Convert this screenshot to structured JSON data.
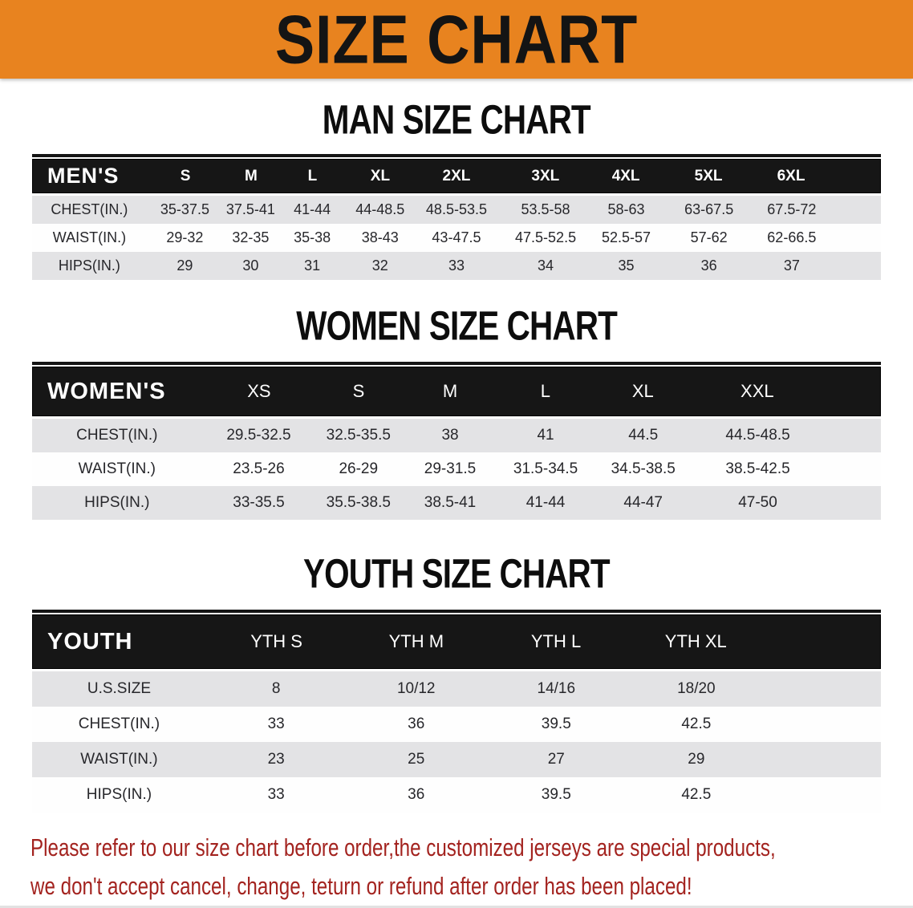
{
  "banner": {
    "title": "SIZE CHART"
  },
  "sections": [
    {
      "heading": "MAN SIZE CHART",
      "table": {
        "label": "MEN'S",
        "columns": [
          "S",
          "M",
          "L",
          "XL",
          "2XL",
          "3XL",
          "4XL",
          "5XL",
          "6XL"
        ],
        "rows": [
          {
            "label": "CHEST(IN.)",
            "values": [
              "35-37.5",
              "37.5-41",
              "41-44",
              "44-48.5",
              "48.5-53.5",
              "53.5-58",
              "58-63",
              "63-67.5",
              "67.5-72"
            ]
          },
          {
            "label": "WAIST(IN.)",
            "values": [
              "29-32",
              "32-35",
              "35-38",
              "38-43",
              "43-47.5",
              "47.5-52.5",
              "52.5-57",
              "57-62",
              "62-66.5"
            ]
          },
          {
            "label": "HIPS(IN.)",
            "values": [
              "29",
              "30",
              "31",
              "32",
              "33",
              "34",
              "35",
              "36",
              "37"
            ]
          }
        ]
      }
    },
    {
      "heading": "WOMEN SIZE CHART",
      "table": {
        "label": "WOMEN'S",
        "columns": [
          "XS",
          "S",
          "M",
          "L",
          "XL",
          "XXL"
        ],
        "rows": [
          {
            "label": "CHEST(IN.)",
            "values": [
              "29.5-32.5",
              "32.5-35.5",
              "38",
              "41",
              "44.5",
              "44.5-48.5"
            ]
          },
          {
            "label": "WAIST(IN.)",
            "values": [
              "23.5-26",
              "26-29",
              "29-31.5",
              "31.5-34.5",
              "34.5-38.5",
              "38.5-42.5"
            ]
          },
          {
            "label": "HIPS(IN.)",
            "values": [
              "33-35.5",
              "35.5-38.5",
              "38.5-41",
              "41-44",
              "44-47",
              "47-50"
            ]
          }
        ]
      }
    },
    {
      "heading": "YOUTH SIZE CHART",
      "table": {
        "label": "YOUTH",
        "columns": [
          "YTH S",
          "YTH M",
          "YTH L",
          "YTH XL"
        ],
        "rows": [
          {
            "label": "U.S.SIZE",
            "values": [
              "8",
              "10/12",
              "14/16",
              "18/20"
            ]
          },
          {
            "label": "CHEST(IN.)",
            "values": [
              "33",
              "36",
              "39.5",
              "42.5"
            ]
          },
          {
            "label": "WAIST(IN.)",
            "values": [
              "23",
              "25",
              "27",
              "29"
            ]
          },
          {
            "label": "HIPS(IN.)",
            "values": [
              "33",
              "36",
              "39.5",
              "42.5"
            ]
          }
        ]
      }
    }
  ],
  "footnote": {
    "lines": [
      "Please refer to our size chart before order,the customized jerseys are special products,",
      "we don't accept cancel, change, teturn or refund after order has been placed!"
    ]
  },
  "colors": {
    "banner_bg": "#E8831F",
    "header_bg": "#161616",
    "stripe": "#E3E3E5",
    "note": "#A3231F"
  }
}
